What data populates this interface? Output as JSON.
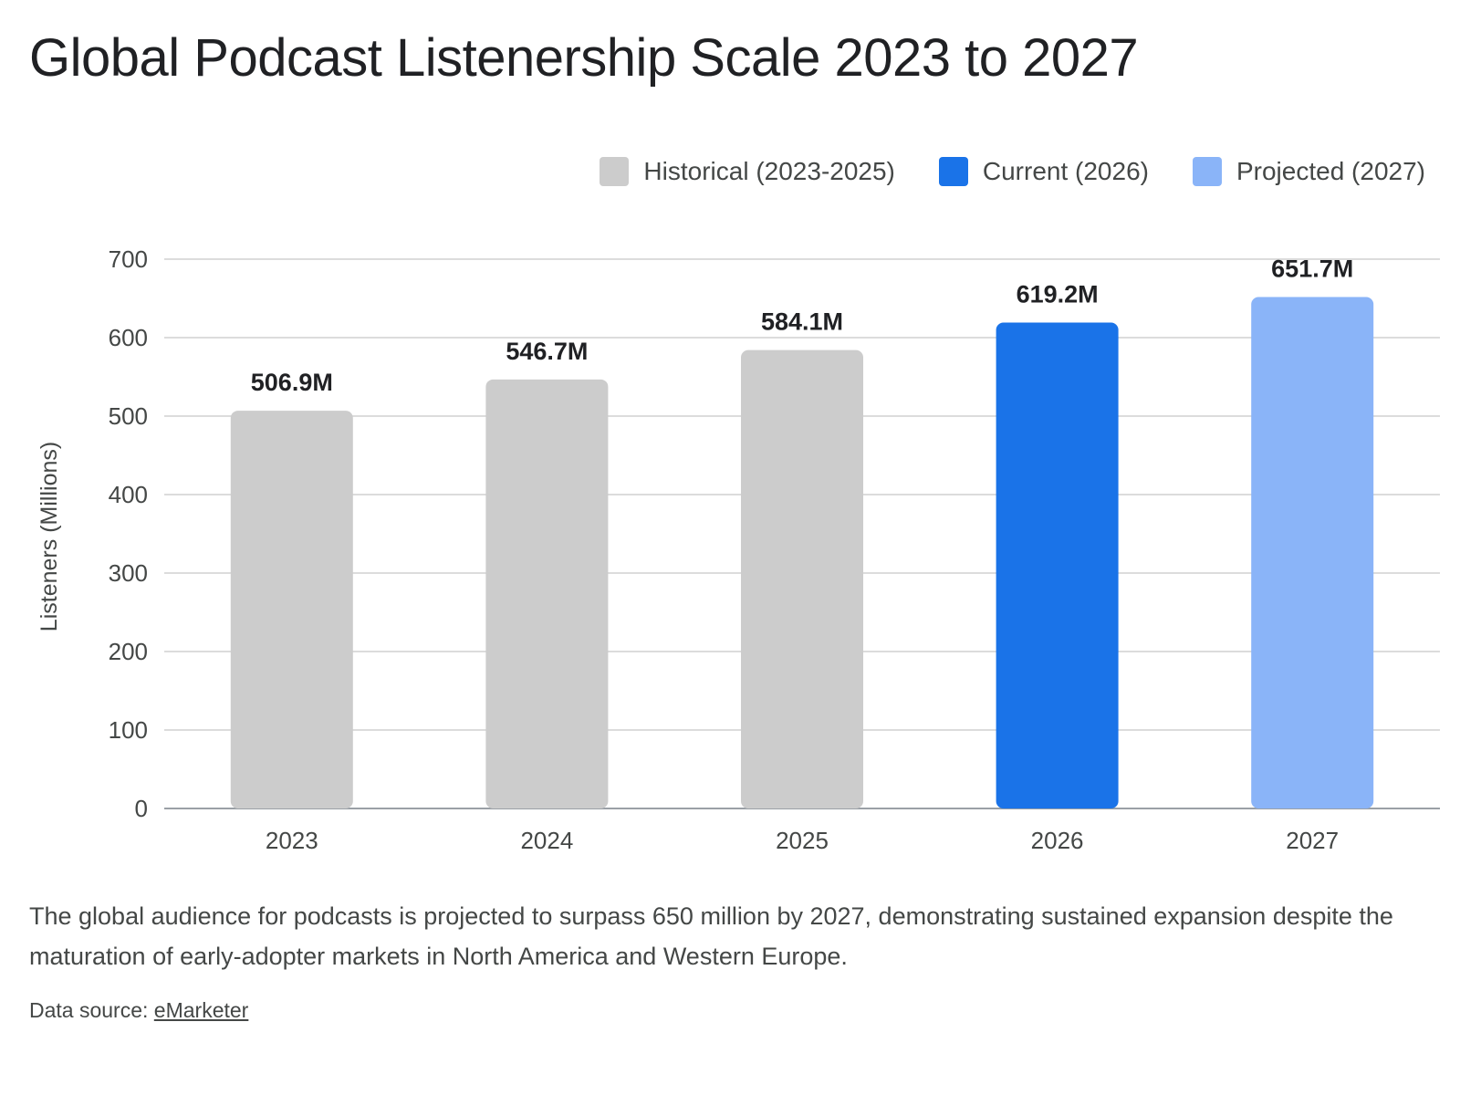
{
  "title": "Global Podcast Listenership Scale 2023 to 2027",
  "legend": [
    {
      "label": "Historical (2023-2025)",
      "color": "#cccccc"
    },
    {
      "label": "Current (2026)",
      "color": "#1a73e8"
    },
    {
      "label": "Projected (2027)",
      "color": "#8ab4f8"
    }
  ],
  "chart_data": {
    "type": "bar",
    "categories": [
      "2023",
      "2024",
      "2025",
      "2026",
      "2027"
    ],
    "values": [
      506.9,
      546.7,
      584.1,
      619.2,
      651.7
    ],
    "data_labels": [
      "506.9M",
      "546.7M",
      "584.1M",
      "619.2M",
      "651.7M"
    ],
    "bar_colors": [
      "#cccccc",
      "#cccccc",
      "#cccccc",
      "#1a73e8",
      "#8ab4f8"
    ],
    "ylabel": "Listeners (Millions)",
    "ylim": [
      0,
      700
    ],
    "yticks": [
      0,
      100,
      200,
      300,
      400,
      500,
      600,
      700
    ],
    "grid": true,
    "legend_position": "top-right"
  },
  "caption": "The global audience for podcasts is projected to surpass 650 million by 2027, demonstrating sustained expansion despite the maturation of early-adopter markets in North America and Western Europe.",
  "source": {
    "prefix": "Data source: ",
    "link_text": "eMarketer"
  }
}
